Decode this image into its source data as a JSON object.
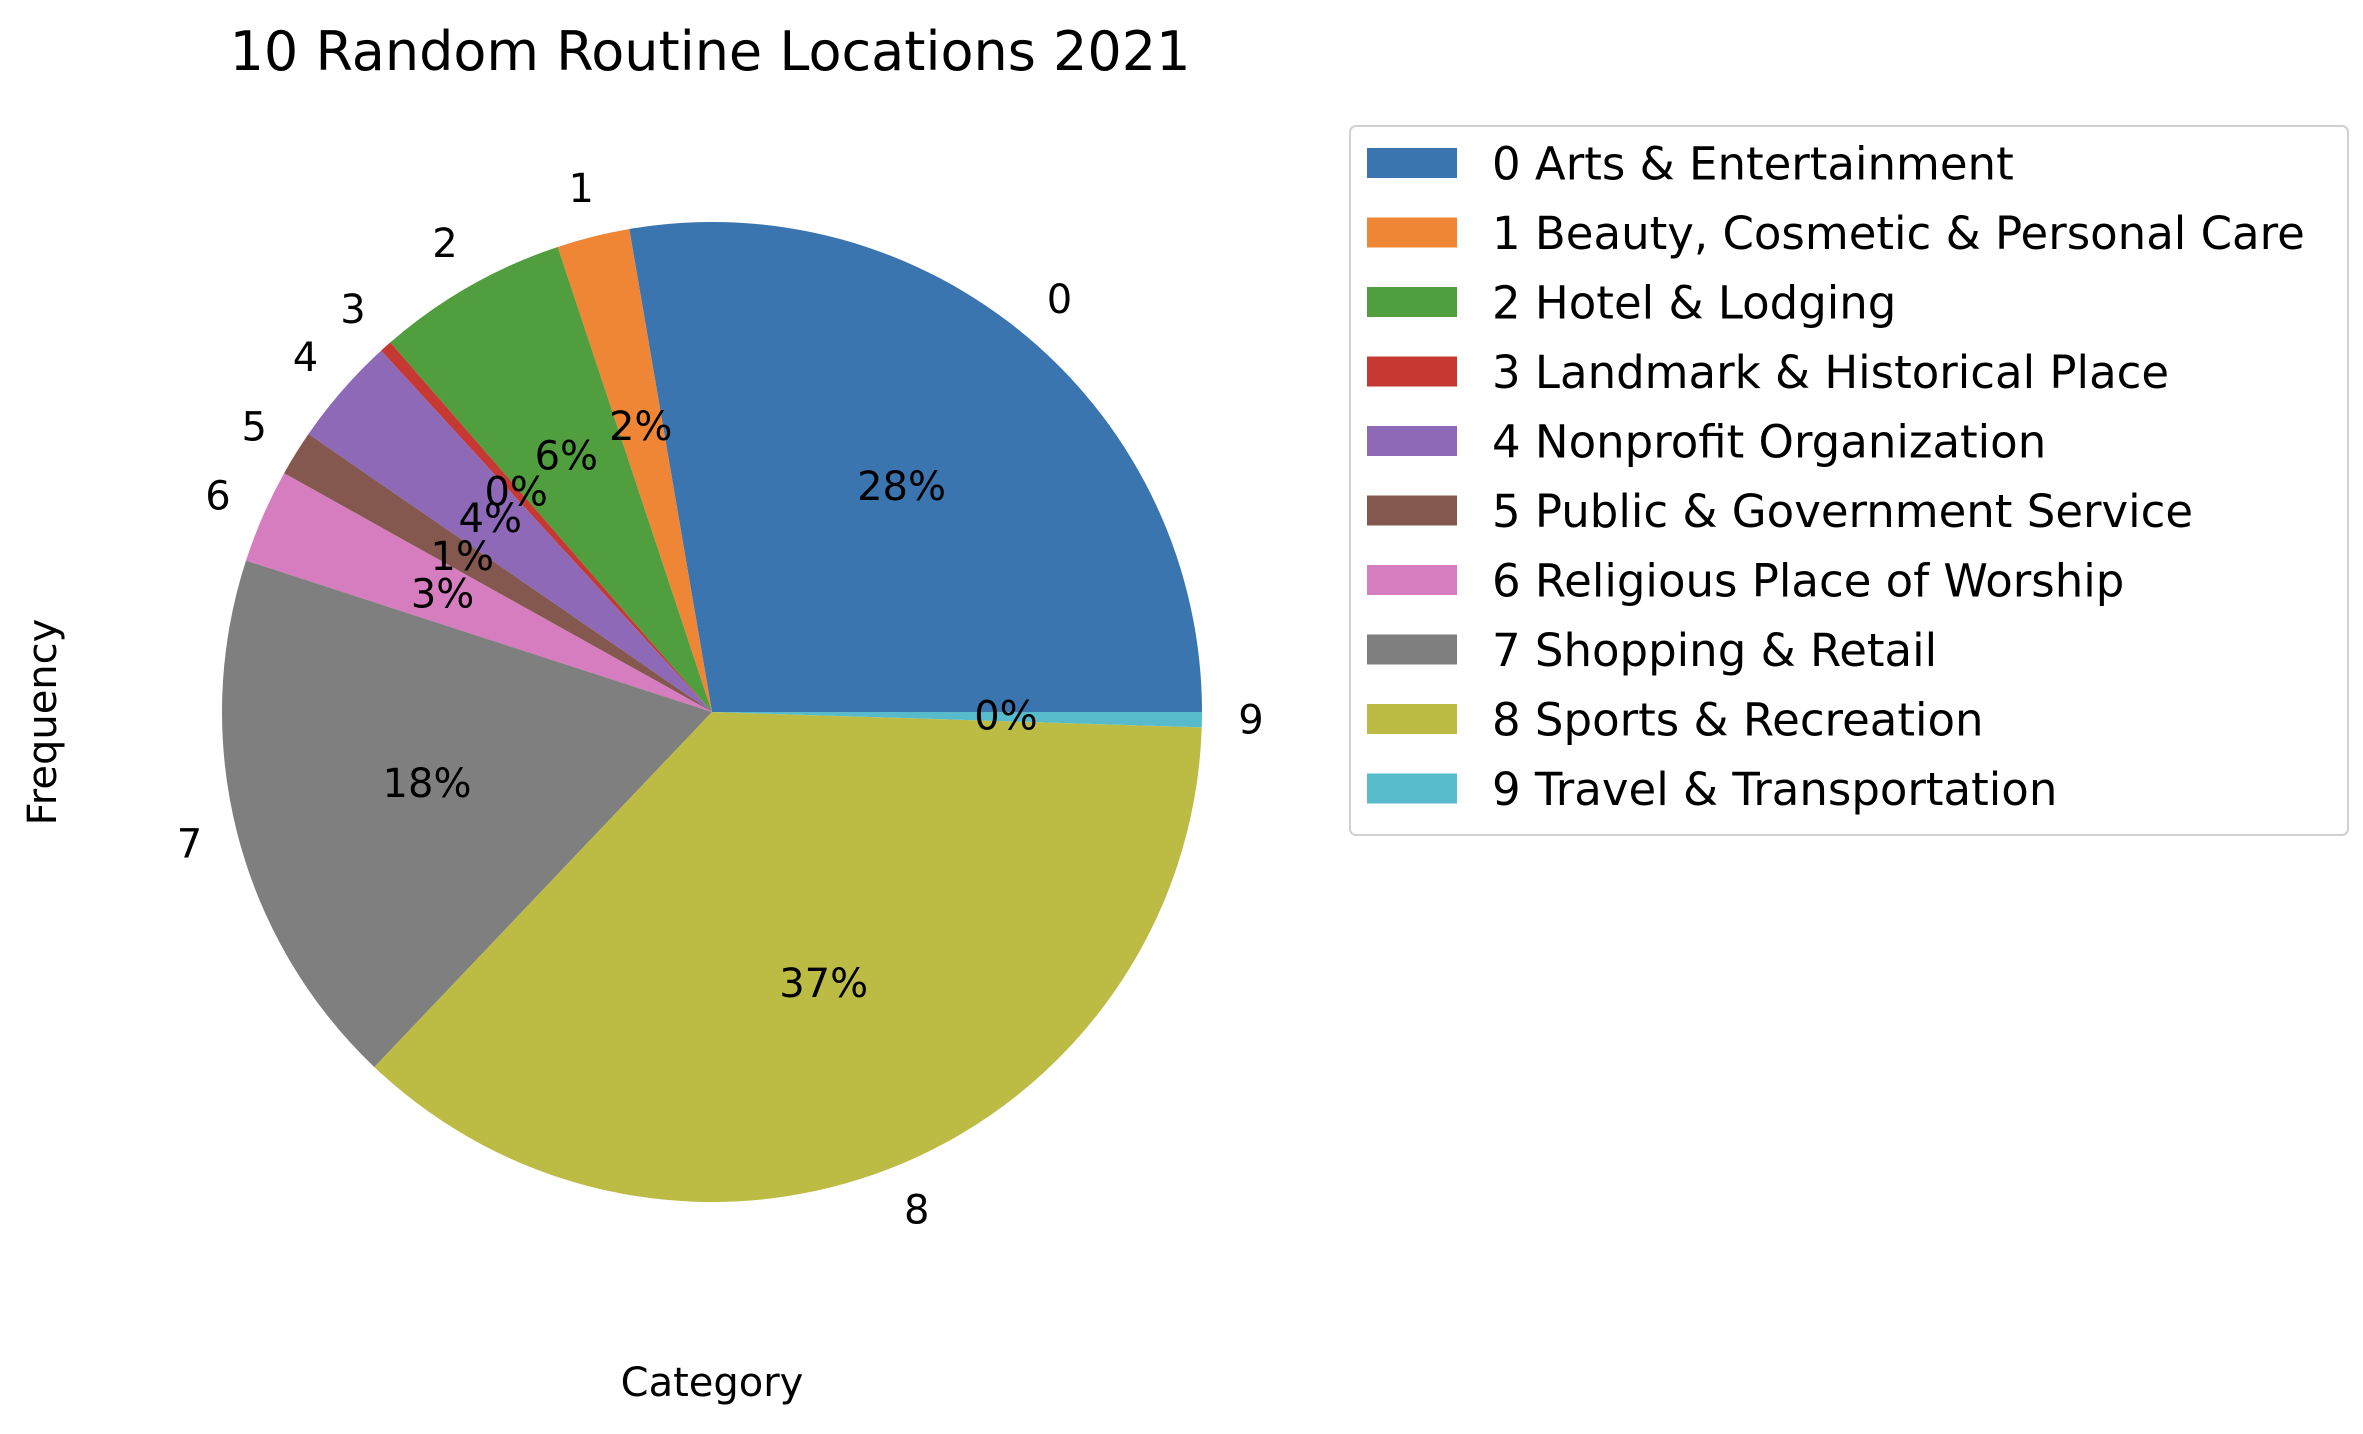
{
  "chart_data": {
    "type": "pie",
    "title": "10 Random Routine Locations 2021",
    "xlabel": "Category",
    "ylabel": "Frequency",
    "categories": [
      "0",
      "1",
      "2",
      "3",
      "4",
      "5",
      "6",
      "7",
      "8",
      "9"
    ],
    "values": [
      27.7,
      2.4,
      6.3,
      0.4,
      3.6,
      1.5,
      3.1,
      17.9,
      36.6,
      0.5
    ],
    "pct_labels": [
      "28%",
      "2%",
      "6%",
      "0%",
      "4%",
      "1%",
      "3%",
      "18%",
      "37%",
      "0%"
    ],
    "legend": {
      "placement": "right",
      "entries": [
        "0 Arts & Entertainment",
        "1 Beauty, Cosmetic & Personal Care",
        "2 Hotel & Lodging",
        "3 Landmark & Historical Place",
        "4 Nonprofit Organization",
        "5 Public & Government Service",
        "6 Religious Place of Worship",
        "7 Shopping & Retail",
        "8 Sports & Recreation",
        "9 Travel & Transportation"
      ]
    },
    "colors": [
      "#3a75af",
      "#ef8636",
      "#519e3e",
      "#c53932",
      "#8d69b8",
      "#84584e",
      "#d57dbf",
      "#7f7f7f",
      "#bcbc45",
      "#58bbcc"
    ],
    "start_angle_deg": 0,
    "direction": "counterclockwise"
  }
}
